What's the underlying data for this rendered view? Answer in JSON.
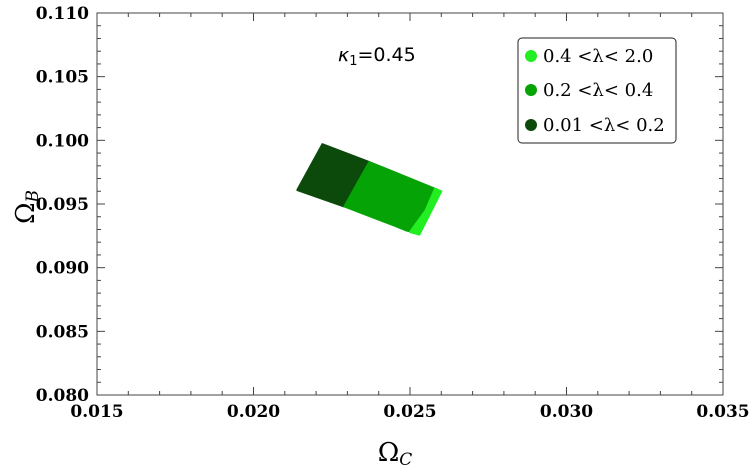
{
  "chart_data": {
    "type": "scatter",
    "title": "",
    "xlabel": "Ω",
    "xlabel_sub": "C",
    "ylabel": "Ω",
    "ylabel_sub": "B",
    "xlim": [
      0.015,
      0.035
    ],
    "ylim": [
      0.08,
      0.11
    ],
    "xticks": [
      "0.015",
      "0.020",
      "0.025",
      "0.030",
      "0.035"
    ],
    "yticks": [
      "0.080",
      "0.085",
      "0.090",
      "0.095",
      "0.100",
      "0.105",
      "0.110"
    ],
    "grid": false,
    "legend_position": "top-right",
    "annotation": {
      "symbol": "κ",
      "sub": "1",
      "text": "=0.45"
    },
    "series": [
      {
        "name": "0.01 <λ< 0.2",
        "color": "#0b4a0b",
        "polygon": [
          [
            0.0214,
            0.0961
          ],
          [
            0.0222,
            0.0997
          ],
          [
            0.0237,
            0.0983
          ],
          [
            0.0229,
            0.0948
          ]
        ]
      },
      {
        "name": "0.2 <λ< 0.4",
        "color": "#05a305",
        "polygon": [
          [
            0.0229,
            0.0948
          ],
          [
            0.0237,
            0.0983
          ],
          [
            0.0259,
            0.0961
          ],
          [
            0.0253,
            0.0927
          ],
          [
            0.0249,
            0.0929
          ],
          [
            0.0245,
            0.0933
          ]
        ]
      },
      {
        "name": "0.4 <λ< 2.0",
        "color": "#22ee22",
        "polygon": [
          [
            0.025,
            0.0928
          ],
          [
            0.0253,
            0.0926
          ],
          [
            0.026,
            0.096
          ],
          [
            0.0258,
            0.0962
          ],
          [
            0.0255,
            0.0945
          ]
        ]
      }
    ]
  }
}
